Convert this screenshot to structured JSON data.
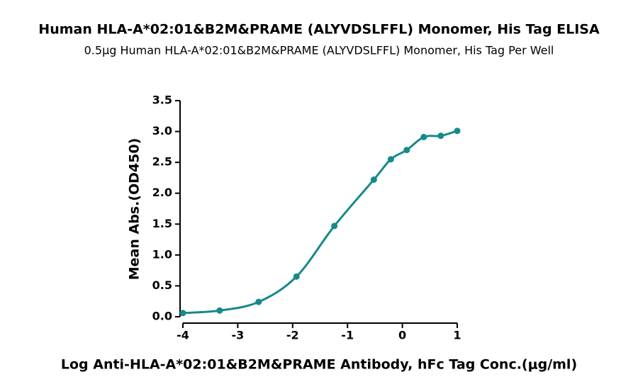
{
  "chart_data": {
    "type": "scatter",
    "title": "Human HLA-A*02:01&B2M&PRAME (ALYVDSLFFL) Monomer, His Tag ELISA",
    "subtitle": "0.5μg Human HLA-A*02:01&B2M&PRAME (ALYVDSLFFL) Monomer, His Tag Per Well",
    "x_label": "Log Anti-HLA-A*02:01&B2M&PRAME Antibody, hFc Tag Conc.(μg/ml)",
    "y_label": "Mean Abs.(OD450)",
    "x": [
      -4,
      -3.33,
      -2.62,
      -1.93,
      -1.24,
      -0.52,
      -0.21,
      0.08,
      0.39,
      0.7,
      1.0
    ],
    "values": [
      0.06,
      0.1,
      0.24,
      0.65,
      1.47,
      2.22,
      2.55,
      2.7,
      2.91,
      2.93,
      3.01
    ],
    "color": "#17898a",
    "xlim": [
      -4,
      1
    ],
    "xticks": [
      -4,
      -3,
      -2,
      -1,
      0,
      1
    ],
    "ylim": [
      0,
      3.5
    ],
    "yticks": [
      {
        "value": 0,
        "label": "0.0"
      },
      0.5,
      {
        "value": 1,
        "label": "1.0"
      },
      1.5,
      {
        "value": 2,
        "label": "2.0"
      },
      2.5,
      {
        "value": 3,
        "label": "3.0"
      },
      3.5
    ]
  }
}
